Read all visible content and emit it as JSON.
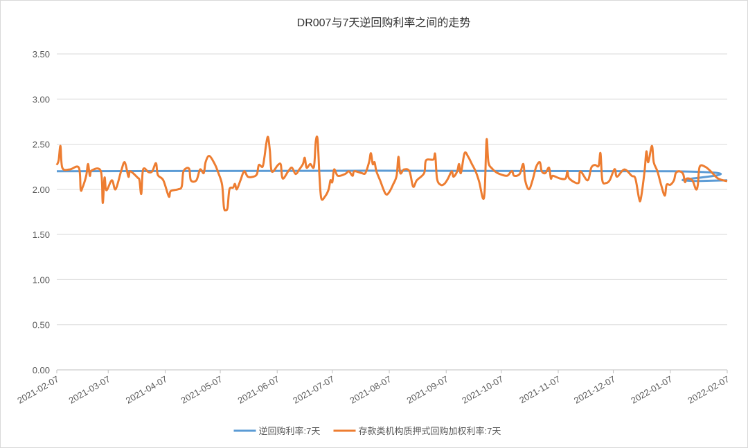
{
  "chart_data": {
    "type": "line",
    "title": "DR007与7天逆回购利率之间的走势",
    "xlim": [
      "2021-02-07",
      "2022-02-07"
    ],
    "xticks": [
      "2021-02-07",
      "2021-03-07",
      "2021-04-07",
      "2021-05-07",
      "2021-06-07",
      "2021-07-07",
      "2021-08-07",
      "2021-09-07",
      "2021-10-07",
      "2021-11-07",
      "2021-12-07",
      "2022-01-07",
      "2022-02-07"
    ],
    "ylim": [
      0,
      3.5
    ],
    "yticks": [
      {
        "value": 0,
        "label": "0.00"
      },
      {
        "value": 0.5,
        "label": "0.50"
      },
      {
        "value": 1,
        "label": "1.00"
      },
      {
        "value": 1.5,
        "label": "1.50"
      },
      {
        "value": 2,
        "label": "2.00"
      },
      {
        "value": 2.5,
        "label": "2.50"
      },
      {
        "value": 3,
        "label": "3.00"
      },
      {
        "value": 3.5,
        "label": "3.50"
      }
    ],
    "grid": true,
    "legend": "bottom",
    "series": [
      {
        "name": "逆回购利率:7天",
        "color": "#5b9bd5",
        "x": [
          "2021-02-07",
          "2022-01-09",
          "2022-01-14",
          "2022-02-07"
        ],
        "values": [
          2.2,
          2.2,
          2.1,
          2.1
        ]
      },
      {
        "name": "存款类机构质押式回购加权利率:7天",
        "color": "#ed7d31",
        "x": [
          "2021-02-07",
          "2021-02-08",
          "2021-02-09",
          "2021-02-10",
          "2021-02-14",
          "2021-02-19",
          "2021-02-20",
          "2021-02-21",
          "2021-02-23",
          "2021-02-24",
          "2021-02-25",
          "2021-02-26",
          "2021-03-03",
          "2021-03-04",
          "2021-03-05",
          "2021-03-06",
          "2021-03-09",
          "2021-03-11",
          "2021-03-14",
          "2021-03-16",
          "2021-03-18",
          "2021-03-19",
          "2021-03-23",
          "2021-03-24",
          "2021-03-25",
          "2021-03-26",
          "2021-03-29",
          "2021-03-31",
          "2021-04-02",
          "2021-04-03",
          "2021-04-06",
          "2021-04-09",
          "2021-04-10",
          "2021-04-14",
          "2021-04-16",
          "2021-04-17",
          "2021-04-20",
          "2021-04-21",
          "2021-04-24",
          "2021-04-26",
          "2021-04-28",
          "2021-04-29",
          "2021-05-01",
          "2021-05-04",
          "2021-05-06",
          "2021-05-08",
          "2021-05-09",
          "2021-05-10",
          "2021-05-11",
          "2021-05-12",
          "2021-05-14",
          "2021-05-15",
          "2021-05-16",
          "2021-05-18",
          "2021-05-20",
          "2021-05-22",
          "2021-05-25",
          "2021-05-27",
          "2021-05-28",
          "2021-05-30",
          "2021-05-31",
          "2021-06-01",
          "2021-06-02",
          "2021-06-03",
          "2021-06-04",
          "2021-06-07",
          "2021-06-08",
          "2021-06-09",
          "2021-06-10",
          "2021-06-13",
          "2021-06-15",
          "2021-06-17",
          "2021-06-19",
          "2021-06-21",
          "2021-06-22",
          "2021-06-23",
          "2021-06-25",
          "2021-06-27",
          "2021-06-28",
          "2021-06-29",
          "2021-06-30",
          "2021-07-01",
          "2021-07-03",
          "2021-07-05",
          "2021-07-06",
          "2021-07-07",
          "2021-07-08",
          "2021-07-10",
          "2021-07-14",
          "2021-07-16",
          "2021-07-18",
          "2021-07-19",
          "2021-07-23",
          "2021-07-25",
          "2021-07-27",
          "2021-07-28",
          "2021-07-29",
          "2021-07-30",
          "2021-07-31",
          "2021-08-02",
          "2021-08-05",
          "2021-08-07",
          "2021-08-09",
          "2021-08-11",
          "2021-08-12",
          "2021-08-13",
          "2021-08-15",
          "2021-08-18",
          "2021-08-20",
          "2021-08-22",
          "2021-08-26",
          "2021-08-27",
          "2021-08-31",
          "2021-09-01",
          "2021-09-02",
          "2021-09-04",
          "2021-09-06",
          "2021-09-08",
          "2021-09-10",
          "2021-09-11",
          "2021-09-13",
          "2021-09-14",
          "2021-09-15",
          "2021-09-17",
          "2021-09-19",
          "2021-09-21",
          "2021-09-23",
          "2021-09-25",
          "2021-09-27",
          "2021-09-28",
          "2021-09-29",
          "2021-09-30",
          "2021-10-02",
          "2021-10-05",
          "2021-10-10",
          "2021-10-12",
          "2021-10-13",
          "2021-10-14",
          "2021-10-17",
          "2021-10-19",
          "2021-10-20",
          "2021-10-22",
          "2021-10-24",
          "2021-10-26",
          "2021-10-28",
          "2021-10-29",
          "2021-10-31",
          "2021-11-02",
          "2021-11-03",
          "2021-11-04",
          "2021-11-08",
          "2021-11-11",
          "2021-11-12",
          "2021-11-13",
          "2021-11-18",
          "2021-11-19",
          "2021-11-23",
          "2021-11-25",
          "2021-11-27",
          "2021-11-29",
          "2021-11-30",
          "2021-12-01",
          "2021-12-03",
          "2021-12-05",
          "2021-12-07",
          "2021-12-08",
          "2021-12-09",
          "2021-12-13",
          "2021-12-17",
          "2021-12-19",
          "2021-12-21",
          "2021-12-22",
          "2021-12-24",
          "2021-12-25",
          "2021-12-26",
          "2021-12-28",
          "2021-12-29",
          "2021-12-31",
          "2022-01-02",
          "2022-01-04",
          "2022-01-05",
          "2022-01-07",
          "2022-01-09",
          "2022-01-10",
          "2022-01-12",
          "2022-01-14",
          "2022-01-15",
          "2022-01-16",
          "2022-01-19",
          "2022-01-21",
          "2022-01-22",
          "2022-01-23",
          "2022-01-26",
          "2022-01-29",
          "2022-02-02",
          "2022-02-07"
        ],
        "values": [
          2.27,
          2.32,
          2.48,
          2.24,
          2.22,
          2.24,
          2.0,
          2.02,
          2.15,
          2.28,
          2.15,
          2.21,
          2.2,
          1.85,
          2.13,
          1.99,
          2.1,
          2.0,
          2.2,
          2.3,
          2.14,
          2.2,
          2.13,
          2.1,
          1.95,
          2.22,
          2.19,
          2.2,
          2.29,
          2.16,
          2.1,
          1.92,
          1.98,
          2.0,
          2.03,
          2.2,
          2.23,
          2.1,
          2.1,
          2.22,
          2.18,
          2.3,
          2.37,
          2.28,
          2.18,
          2.05,
          1.8,
          1.77,
          1.8,
          2.0,
          2.02,
          2.06,
          2.0,
          2.1,
          2.2,
          2.14,
          2.14,
          2.17,
          2.27,
          2.25,
          2.35,
          2.5,
          2.58,
          2.43,
          2.2,
          2.26,
          2.28,
          2.27,
          2.12,
          2.2,
          2.24,
          2.17,
          2.22,
          2.28,
          2.35,
          2.24,
          2.28,
          2.25,
          2.53,
          2.55,
          2.15,
          1.9,
          1.92,
          2.0,
          2.1,
          2.08,
          2.22,
          2.15,
          2.17,
          2.2,
          2.15,
          2.2,
          2.18,
          2.18,
          2.3,
          2.4,
          2.28,
          2.3,
          2.2,
          2.1,
          1.95,
          1.97,
          2.05,
          2.15,
          2.36,
          2.18,
          2.22,
          2.2,
          2.03,
          2.1,
          2.18,
          2.32,
          2.33,
          2.39,
          2.12,
          2.05,
          2.06,
          2.12,
          2.2,
          2.14,
          2.2,
          2.28,
          2.18,
          2.4,
          2.36,
          2.28,
          2.2,
          2.08,
          1.9,
          2.0,
          2.55,
          2.3,
          2.23,
          2.18,
          2.15,
          2.19,
          2.2,
          2.15,
          2.17,
          2.28,
          2.1,
          2.0,
          2.1,
          2.25,
          2.3,
          2.2,
          2.18,
          2.24,
          2.12,
          2.15,
          2.12,
          2.12,
          2.2,
          2.12,
          2.07,
          2.2,
          2.1,
          2.24,
          2.27,
          2.26,
          2.4,
          2.1,
          2.07,
          2.1,
          2.2,
          2.22,
          2.14,
          2.22,
          2.15,
          2.12,
          1.9,
          1.9,
          2.2,
          2.42,
          2.3,
          2.48,
          2.3,
          2.2,
          2.05,
          1.93,
          2.05,
          2.05,
          2.1,
          2.18,
          2.2,
          2.17,
          2.08,
          2.12,
          2.1,
          2.0,
          2.05,
          2.25,
          2.25,
          2.2,
          2.12,
          2.09
        ]
      }
    ]
  }
}
